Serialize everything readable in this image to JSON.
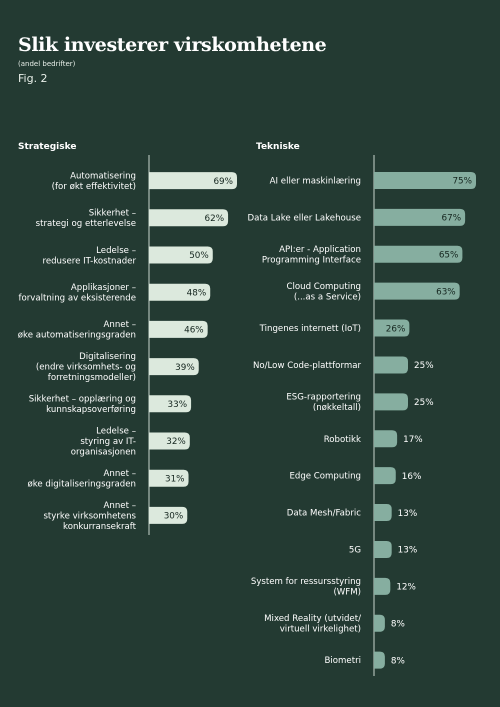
{
  "title": "Slik investerer virskomhetene",
  "subtitle": "(andel bedrifter)",
  "figure_label": "Fig. 2",
  "colors": {
    "background": "#233a32",
    "strategic_bar": "#dce9dd",
    "technical_bar": "#86aea0",
    "axis": "#c9d6cf",
    "text": "#ffffff",
    "bar_label_dark": "#15261f"
  },
  "chart_data": [
    {
      "type": "bar",
      "orientation": "horizontal",
      "title": "Strategiske",
      "categories": [
        "Automatisering\n(for økt effektivitet)",
        "Sikkerhet –\nstrategi og etterlevelse",
        "Ledelse –\nredusere IT-kostnader",
        "Applikasjoner –\nforvaltning av eksisterende",
        "Annet –\nøke automatiseringsgraden",
        "Digitalisering\n(endre virksomhets- og\nforretningsmodeller)",
        "Sikkerhet – opplæring og\nkunnskapsoverføring",
        "Ledelse –\nstyring av IT-\norganisasjonen",
        "Annet –\nøke digitaliseringsgraden",
        "Annet –\nstyrke virksomhetens\nkonkurransekraft"
      ],
      "values": [
        69,
        62,
        50,
        48,
        46,
        39,
        33,
        32,
        31,
        30
      ],
      "value_labels": [
        "69%",
        "62%",
        "50%",
        "48%",
        "46%",
        "39%",
        "33%",
        "32%",
        "31%",
        "30%"
      ],
      "unit": "%"
    },
    {
      "type": "bar",
      "orientation": "horizontal",
      "title": "Tekniske",
      "categories": [
        "AI eller maskinlæring",
        "Data Lake eller Lakehouse",
        "API:er - Application\nProgramming Interface",
        "Cloud Computing\n(...as a Service)",
        "Tingenes internett (IoT)",
        "No/Low Code-plattformar",
        "ESG-rapportering\n(nøkkeltall)",
        "Robotikk",
        "Edge Computing",
        "Data Mesh/Fabric",
        "5G",
        "System for ressursstyring\n(WFM)",
        "Mixed Reality (utvidet/\nvirtuell virkelighet)",
        "Biometri"
      ],
      "values": [
        75,
        67,
        65,
        63,
        26,
        25,
        25,
        17,
        16,
        13,
        13,
        12,
        8,
        8
      ],
      "value_labels": [
        "75%",
        "67%",
        "65%",
        "63%",
        "26%",
        "25%",
        "25%",
        "17%",
        "16%",
        "13%",
        "13%",
        "12%",
        "8%",
        "8%"
      ],
      "unit": "%"
    }
  ]
}
